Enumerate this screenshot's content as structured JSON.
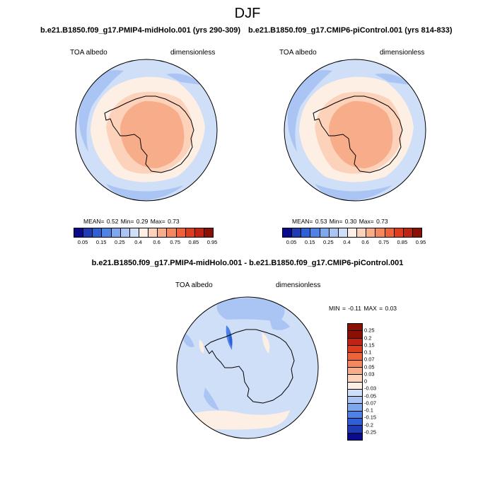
{
  "figure": {
    "season": "DJF",
    "panel_left_title": "b.e21.B1850.f09_g17.PMIP4-midHolo.001 (yrs 290-309)",
    "panel_right_title": "b.e21.B1850.f09_g17.CMIP6-piControl.001 (yrs 814-833)",
    "diff_title": "b.e21.B1850.f09_g17.PMIP4-midHolo.001 - b.e21.B1850.f09_g17.CMIP6-piControl.001"
  },
  "panels": [
    {
      "variable": "TOA albedo",
      "units": "dimensionless",
      "stats": "MEAN=  0.52  Min=  0.29  Max=  0.73"
    },
    {
      "variable": "TOA albedo",
      "units": "dimensionless",
      "stats": "MEAN=  0.53  Min=  0.30  Max=  0.73"
    }
  ],
  "diff_panel": {
    "variable": "TOA albedo",
    "units": "dimensionless",
    "stats": "MIN =  -0.11  MAX =   0.03"
  },
  "colorbar_abs": {
    "colors": [
      "#0a0a8c",
      "#1f3cb4",
      "#2f5fd6",
      "#4f82e6",
      "#7fa7ee",
      "#aac4f3",
      "#cfdff8",
      "#fdefe3",
      "#fcd2bb",
      "#f8ad8a",
      "#f5875e",
      "#f0613a",
      "#de3c1d",
      "#c12312",
      "#8c0f06"
    ],
    "tick_labels": [
      "0.05",
      "0.15",
      "0.25",
      "0.4",
      "0.6",
      "0.75",
      "0.85",
      "0.95"
    ]
  },
  "colorbar_diff": {
    "colors": [
      "#8c0f06",
      "#c12312",
      "#de3c1d",
      "#f0613a",
      "#f5875e",
      "#f8ad8a",
      "#fcd2bb",
      "#fdefe3",
      "#cfdff8",
      "#aac4f3",
      "#7fa7ee",
      "#4f82e6",
      "#2f5fd6",
      "#1f3cb4",
      "#0a0a8c"
    ],
    "tick_labels": [
      "0.25",
      "0.2",
      "0.15",
      "0.1",
      "0.07",
      "0.05",
      "0.03",
      "0",
      "-0.03",
      "-0.05",
      "-0.07",
      "-0.1",
      "-0.15",
      "-0.2",
      "-0.25"
    ]
  }
}
